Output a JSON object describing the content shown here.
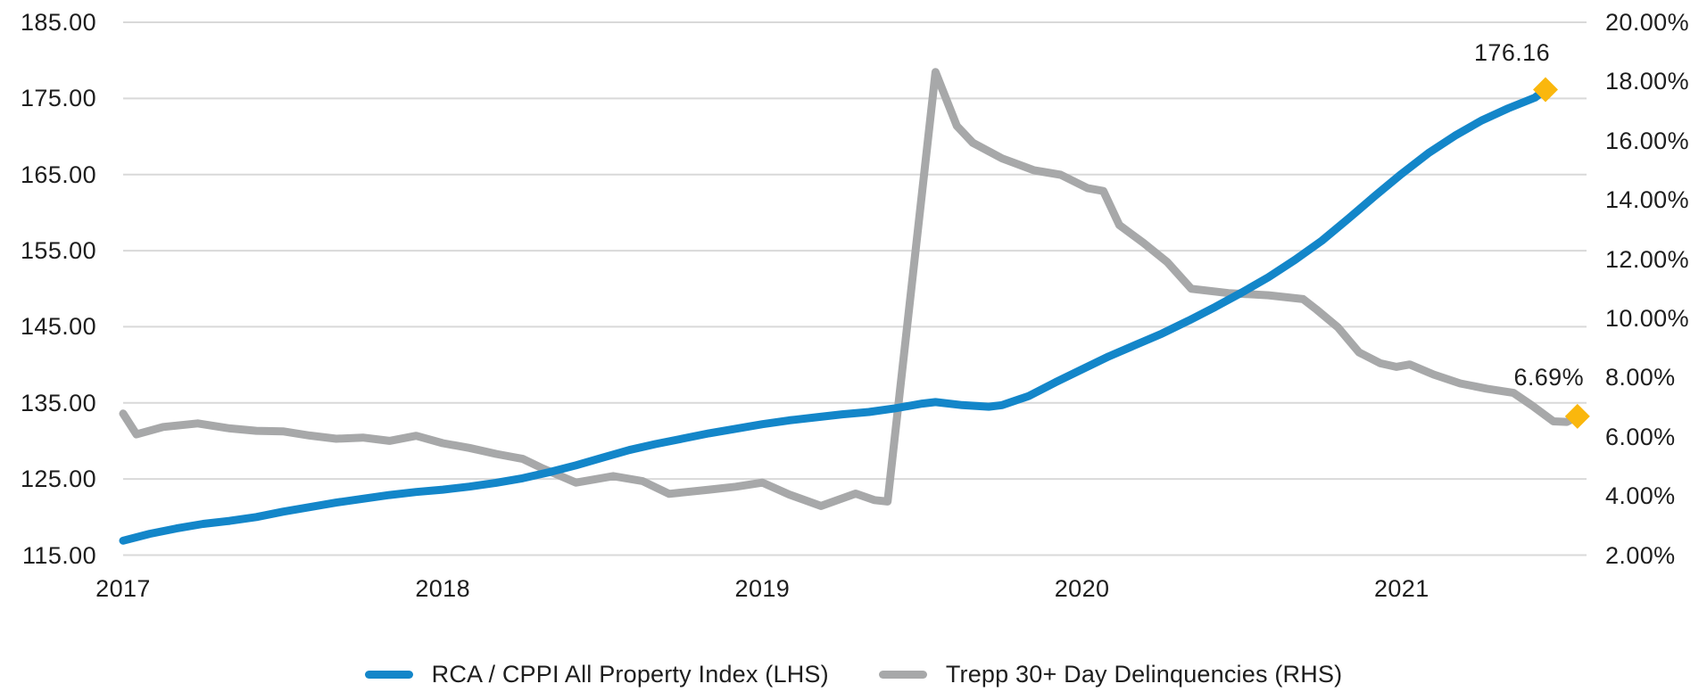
{
  "chart_data": {
    "type": "line",
    "title": "",
    "grid": true,
    "legend_position": "bottom",
    "background_color": "#ffffff",
    "gridline_color": "#d9d9d9",
    "text_color": "#1e1e1e",
    "marker_color": "#fab70d",
    "marker_shape": "diamond",
    "x_axis": {
      "tick_labels": [
        "2017",
        "2018",
        "2019",
        "2020",
        "2021"
      ],
      "tick_month_positions": [
        0,
        12,
        24,
        36,
        48
      ],
      "unit": "months since Jan 2017"
    },
    "left_axis": {
      "labels": [
        "185.00",
        "175.00",
        "165.00",
        "155.00",
        "145.00",
        "135.00",
        "125.00",
        "115.00"
      ],
      "max": 185,
      "min": 115
    },
    "right_axis": {
      "labels": [
        "20.00%",
        "18.00%",
        "16.00%",
        "14.00%",
        "12.00%",
        "10.00%",
        "8.00%",
        "6.00%",
        "4.00%",
        "2.00%"
      ],
      "max": 20,
      "min": 2
    },
    "series": [
      {
        "key": "trepp-delinquencies",
        "name": "Trepp 30+ Day Delinquencies (RHS)",
        "axis": "right",
        "color": "#a7a8a9",
        "end_label": "6.69%",
        "end_value": 6.69,
        "points": [
          [
            0,
            6.78
          ],
          [
            0.5,
            6.08
          ],
          [
            1.5,
            6.33
          ],
          [
            2.8,
            6.45
          ],
          [
            4,
            6.28
          ],
          [
            5,
            6.2
          ],
          [
            6,
            6.18
          ],
          [
            7,
            6.04
          ],
          [
            8,
            5.93
          ],
          [
            9,
            5.97
          ],
          [
            10,
            5.86
          ],
          [
            11,
            6.03
          ],
          [
            12,
            5.78
          ],
          [
            13,
            5.62
          ],
          [
            14,
            5.42
          ],
          [
            15,
            5.25
          ],
          [
            15.7,
            4.95
          ],
          [
            17,
            4.45
          ],
          [
            18.4,
            4.67
          ],
          [
            19.5,
            4.5
          ],
          [
            20.5,
            4.07
          ],
          [
            22,
            4.21
          ],
          [
            23,
            4.31
          ],
          [
            24,
            4.45
          ],
          [
            25,
            4.05
          ],
          [
            26.2,
            3.66
          ],
          [
            27.5,
            4.08
          ],
          [
            28.2,
            3.86
          ],
          [
            28.7,
            3.81
          ],
          [
            30.5,
            18.32
          ],
          [
            31.3,
            16.5
          ],
          [
            31.9,
            15.93
          ],
          [
            33,
            15.4
          ],
          [
            34.2,
            15.0
          ],
          [
            35.2,
            14.85
          ],
          [
            36.2,
            14.4
          ],
          [
            36.8,
            14.3
          ],
          [
            37.4,
            13.15
          ],
          [
            38.3,
            12.55
          ],
          [
            39.2,
            11.9
          ],
          [
            40.1,
            11.0
          ],
          [
            41.5,
            10.85
          ],
          [
            43,
            10.78
          ],
          [
            44.3,
            10.65
          ],
          [
            44.8,
            10.3
          ],
          [
            45.6,
            9.7
          ],
          [
            46.4,
            8.85
          ],
          [
            47.2,
            8.48
          ],
          [
            47.8,
            8.36
          ],
          [
            48.3,
            8.44
          ],
          [
            49.2,
            8.1
          ],
          [
            50.2,
            7.8
          ],
          [
            51.2,
            7.62
          ],
          [
            52.2,
            7.48
          ],
          [
            52.9,
            7.05
          ],
          [
            53.7,
            6.52
          ],
          [
            54.2,
            6.5
          ],
          [
            54.6,
            6.69
          ]
        ]
      },
      {
        "key": "rca-cppi-index",
        "name": "RCA / CPPI All Property Index (LHS)",
        "axis": "left",
        "color": "#1386c9",
        "end_label": "176.16",
        "end_value": 176.16,
        "points": [
          [
            0,
            116.9
          ],
          [
            1,
            117.8
          ],
          [
            2,
            118.5
          ],
          [
            3,
            119.1
          ],
          [
            4,
            119.5
          ],
          [
            5,
            120.0
          ],
          [
            6,
            120.7
          ],
          [
            7,
            121.3
          ],
          [
            8,
            121.9
          ],
          [
            9,
            122.4
          ],
          [
            10,
            122.9
          ],
          [
            11,
            123.3
          ],
          [
            12,
            123.6
          ],
          [
            13,
            124.0
          ],
          [
            14,
            124.5
          ],
          [
            15,
            125.1
          ],
          [
            16,
            125.9
          ],
          [
            17,
            126.8
          ],
          [
            18,
            127.8
          ],
          [
            19,
            128.8
          ],
          [
            20,
            129.6
          ],
          [
            21,
            130.3
          ],
          [
            22,
            131.0
          ],
          [
            23,
            131.6
          ],
          [
            24,
            132.2
          ],
          [
            25,
            132.7
          ],
          [
            26,
            133.1
          ],
          [
            27,
            133.5
          ],
          [
            28,
            133.8
          ],
          [
            29,
            134.3
          ],
          [
            30,
            134.9
          ],
          [
            30.5,
            135.1
          ],
          [
            31.5,
            134.7
          ],
          [
            32.5,
            134.5
          ],
          [
            33,
            134.7
          ],
          [
            34,
            135.9
          ],
          [
            35,
            137.7
          ],
          [
            36,
            139.4
          ],
          [
            37,
            141.1
          ],
          [
            38,
            142.6
          ],
          [
            39,
            144.1
          ],
          [
            40,
            145.8
          ],
          [
            41,
            147.6
          ],
          [
            42,
            149.5
          ],
          [
            43,
            151.5
          ],
          [
            44,
            153.8
          ],
          [
            45,
            156.3
          ],
          [
            46,
            159.2
          ],
          [
            47,
            162.2
          ],
          [
            48,
            165.1
          ],
          [
            49,
            167.8
          ],
          [
            50,
            170.1
          ],
          [
            51,
            172.1
          ],
          [
            52,
            173.7
          ],
          [
            53,
            175.1
          ],
          [
            53.4,
            176.16
          ]
        ]
      }
    ]
  }
}
